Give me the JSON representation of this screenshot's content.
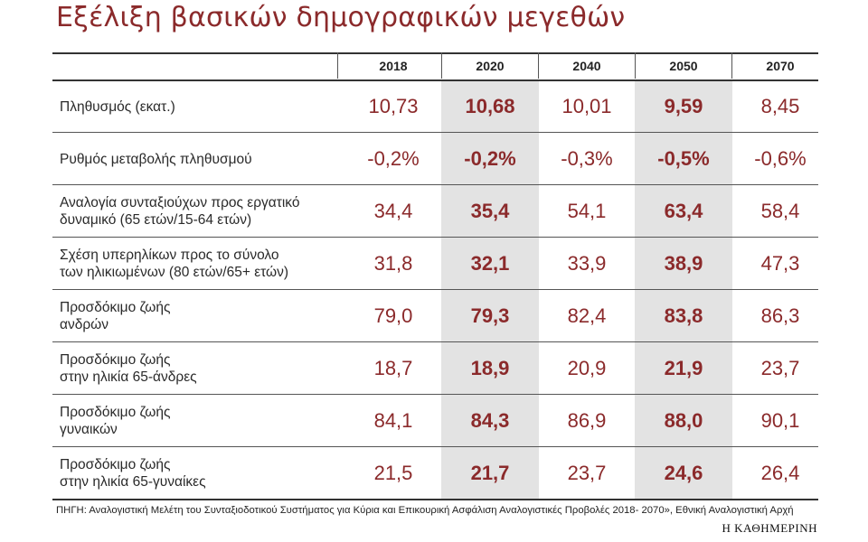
{
  "title": "Εξέλιξη βασικών δημογραφικών μεγεθών",
  "colors": {
    "accent": "#8b2a2b",
    "highlight_column": "#e3e3e3"
  },
  "chart_data": {
    "type": "table",
    "title": "Εξέλιξη βασικών δημογραφικών μεγεθών",
    "columns": [
      "2018",
      "2020",
      "2040",
      "2050",
      "2070"
    ],
    "highlighted_columns": [
      "2020",
      "2050"
    ],
    "rows": [
      {
        "label": [
          "Πληθυσμός (εκατ.)"
        ],
        "values": [
          "10,73",
          "10,68",
          "10,01",
          "9,59",
          "8,45"
        ]
      },
      {
        "label": [
          "Ρυθμός μεταβολής πληθυσμού"
        ],
        "values": [
          "-0,2%",
          "-0,2%",
          "-0,3%",
          "-0,5%",
          "-0,6%"
        ]
      },
      {
        "label": [
          "Αναλογία συνταξιούχων προς εργατικό",
          "δυναμικό (65 ετών/15-64 ετών)"
        ],
        "values": [
          "34,4",
          "35,4",
          "54,1",
          "63,4",
          "58,4"
        ]
      },
      {
        "label": [
          "Σχέση υπερηλίκων προς το σύνολο",
          "των ηλικιωμένων (80 ετών/65+ ετών)"
        ],
        "values": [
          "31,8",
          "32,1",
          "33,9",
          "38,9",
          "47,3"
        ]
      },
      {
        "label": [
          "Προσδόκιμο ζωής",
          "ανδρών"
        ],
        "values": [
          "79,0",
          "79,3",
          "82,4",
          "83,8",
          "86,3"
        ]
      },
      {
        "label": [
          "Προσδόκιμο ζωής",
          "στην ηλικία 65-άνδρες"
        ],
        "values": [
          "18,7",
          "18,9",
          "20,9",
          "21,9",
          "23,7"
        ]
      },
      {
        "label": [
          "Προσδόκιμο ζωής",
          "γυναικών"
        ],
        "values": [
          "84,1",
          "84,3",
          "86,9",
          "88,0",
          "90,1"
        ]
      },
      {
        "label": [
          "Προσδόκιμο ζωής",
          "στην ηλικία 65-γυναίκες"
        ],
        "values": [
          "21,5",
          "21,7",
          "23,7",
          "24,6",
          "26,4"
        ]
      }
    ]
  },
  "source": "ΠΗΓΗ: Αναλογιστική Μελέτη του Συνταξιοδοτικού Συστήματος για Κύρια και Επικουρική Ασφάλιση Αναλογιστικές Προβολές 2018- 2070», Εθνική Αναλογιστική Αρχή",
  "brand": "Η ΚΑΘΗΜΕΡΙΝΗ"
}
